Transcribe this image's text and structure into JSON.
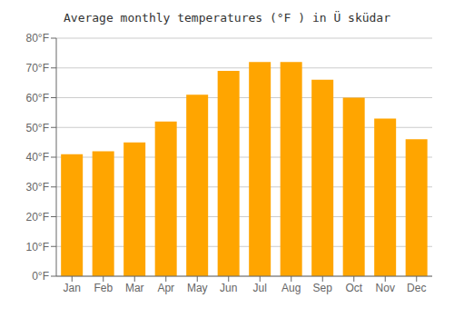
{
  "chart_data": {
    "type": "bar",
    "title": "Average monthly temperatures (°F ) in Ü sküdar",
    "categories": [
      "Jan",
      "Feb",
      "Mar",
      "Apr",
      "May",
      "Jun",
      "Jul",
      "Aug",
      "Sep",
      "Oct",
      "Nov",
      "Dec"
    ],
    "values": [
      41,
      42,
      45,
      52,
      61,
      69,
      72,
      72,
      66,
      60,
      53,
      46
    ],
    "color": "#FFA500",
    "ylim": [
      0,
      80
    ],
    "yticks": [
      {
        "value": 0,
        "label": "0°F"
      },
      {
        "value": 10,
        "label": "10°F"
      },
      {
        "value": 20,
        "label": "20°F"
      },
      {
        "value": 30,
        "label": "30°F"
      },
      {
        "value": 40,
        "label": "40°F"
      },
      {
        "value": 50,
        "label": "50°F"
      },
      {
        "value": 60,
        "label": "60°F"
      },
      {
        "value": 70,
        "label": "70°F"
      },
      {
        "value": 80,
        "label": "80°F"
      }
    ],
    "grid": true
  }
}
